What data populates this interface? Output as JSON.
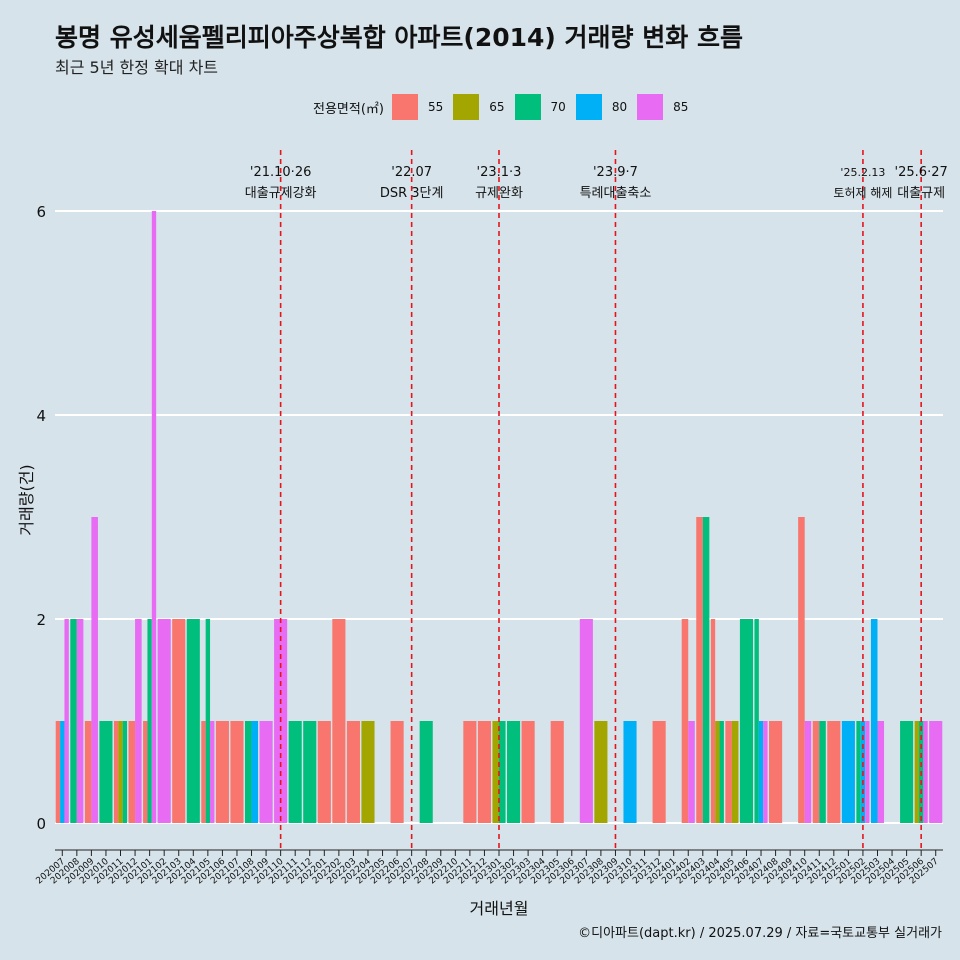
{
  "header": {
    "title": "봉명 유성세움펠리피아주상복합 아파트(2014) 거래량 변화 흐름",
    "subtitle": "최근 5년 한정 확대 차트"
  },
  "legend": {
    "title": "전용면적(㎡)",
    "items": [
      {
        "label": "55",
        "color": "#f8766d"
      },
      {
        "label": "65",
        "color": "#a3a500"
      },
      {
        "label": "70",
        "color": "#00bf7d"
      },
      {
        "label": "80",
        "color": "#00b0f6"
      },
      {
        "label": "85",
        "color": "#e76bf3"
      }
    ]
  },
  "caption": "©디아파트(dapt.kr) / 2025.07.29 / 자료=국토교통부 실거래가",
  "chart_data": {
    "type": "bar",
    "title": "봉명 유성세움펠리피아주상복합 아파트(2014) 거래량 변화 흐름",
    "subtitle": "최근 5년 한정 확대 차트",
    "xlabel": "거래년월",
    "ylabel": "거래량(건)",
    "ylim": [
      0,
      6
    ],
    "yticks": [
      0,
      2,
      4,
      6
    ],
    "grid": true,
    "legend_position": "top",
    "categories": [
      "202007",
      "202008",
      "202009",
      "202010",
      "202011",
      "202012",
      "202101",
      "202102",
      "202103",
      "202104",
      "202105",
      "202106",
      "202107",
      "202108",
      "202109",
      "202110",
      "202111",
      "202112",
      "202201",
      "202202",
      "202203",
      "202204",
      "202205",
      "202206",
      "202207",
      "202208",
      "202209",
      "202210",
      "202211",
      "202212",
      "202301",
      "202302",
      "202303",
      "202304",
      "202305",
      "202306",
      "202307",
      "202308",
      "202309",
      "202310",
      "202311",
      "202312",
      "202401",
      "202402",
      "202403",
      "202404",
      "202405",
      "202406",
      "202407",
      "202408",
      "202409",
      "202410",
      "202411",
      "202412",
      "202501",
      "202502",
      "202503",
      "202504",
      "202505",
      "202506",
      "202507"
    ],
    "series": [
      {
        "name": "55",
        "color": "#f8766d",
        "values": [
          1,
          0,
          1,
          0,
          1,
          1,
          1,
          0,
          2,
          0,
          1,
          1,
          1,
          0,
          0,
          0,
          0,
          0,
          1,
          2,
          1,
          0,
          0,
          1,
          0,
          0,
          0,
          0,
          1,
          1,
          0,
          0,
          1,
          0,
          1,
          0,
          0,
          0,
          0,
          0,
          0,
          1,
          0,
          2,
          3,
          2,
          1,
          0,
          0,
          1,
          0,
          3,
          1,
          1,
          0,
          0,
          0,
          0,
          0,
          0,
          0
        ]
      },
      {
        "name": "65",
        "color": "#a3a500",
        "values": [
          0,
          0,
          0,
          0,
          1,
          0,
          0,
          0,
          0,
          0,
          0,
          0,
          0,
          0,
          0,
          0,
          0,
          0,
          0,
          0,
          0,
          1,
          0,
          0,
          0,
          0,
          0,
          0,
          0,
          0,
          1,
          0,
          0,
          0,
          0,
          0,
          0,
          1,
          0,
          0,
          0,
          0,
          0,
          0,
          0,
          1,
          1,
          0,
          0,
          0,
          0,
          0,
          0,
          0,
          0,
          0,
          0,
          0,
          0,
          1,
          0
        ]
      },
      {
        "name": "70",
        "color": "#00bf7d",
        "values": [
          0,
          2,
          0,
          1,
          1,
          0,
          2,
          0,
          0,
          2,
          2,
          0,
          0,
          1,
          0,
          0,
          1,
          1,
          0,
          0,
          0,
          0,
          0,
          0,
          0,
          1,
          0,
          0,
          0,
          0,
          1,
          1,
          0,
          0,
          0,
          0,
          0,
          0,
          0,
          0,
          0,
          0,
          0,
          0,
          3,
          1,
          0,
          2,
          2,
          0,
          0,
          0,
          1,
          0,
          0,
          1,
          0,
          0,
          1,
          1,
          0
        ]
      },
      {
        "name": "80",
        "color": "#00b0f6",
        "values": [
          1,
          0,
          0,
          0,
          0,
          0,
          0,
          0,
          0,
          0,
          0,
          0,
          0,
          1,
          0,
          0,
          0,
          0,
          0,
          0,
          0,
          0,
          0,
          0,
          0,
          0,
          0,
          0,
          0,
          0,
          0,
          0,
          0,
          0,
          0,
          0,
          0,
          0,
          0,
          1,
          0,
          0,
          0,
          0,
          0,
          0,
          0,
          0,
          1,
          0,
          0,
          0,
          0,
          0,
          1,
          1,
          2,
          0,
          0,
          0,
          0
        ]
      },
      {
        "name": "85",
        "color": "#e76bf3",
        "values": [
          2,
          2,
          3,
          0,
          0,
          2,
          6,
          2,
          0,
          0,
          1,
          0,
          0,
          0,
          1,
          2,
          0,
          0,
          0,
          0,
          0,
          0,
          0,
          0,
          0,
          0,
          0,
          0,
          0,
          0,
          0,
          0,
          0,
          0,
          0,
          0,
          2,
          0,
          0,
          0,
          0,
          0,
          0,
          1,
          0,
          0,
          0,
          0,
          1,
          0,
          0,
          1,
          0,
          0,
          0,
          1,
          1,
          0,
          0,
          1,
          1
        ]
      }
    ],
    "annotations": [
      {
        "x": "202110",
        "date": "'21.10·26",
        "label": "대출규제강화"
      },
      {
        "x": "202207",
        "date": "'22.07",
        "label": "DSR 3단계"
      },
      {
        "x": "202301",
        "date": "'23.1·3",
        "label": "규제완화"
      },
      {
        "x": "202309",
        "date": "'23.9·7",
        "label": "특례대출축소"
      },
      {
        "x": "202502",
        "date": "'25.2.13",
        "label": "토허제 해제"
      },
      {
        "x": "202506",
        "date": "'25.6·27",
        "label": "대출규제"
      }
    ]
  }
}
